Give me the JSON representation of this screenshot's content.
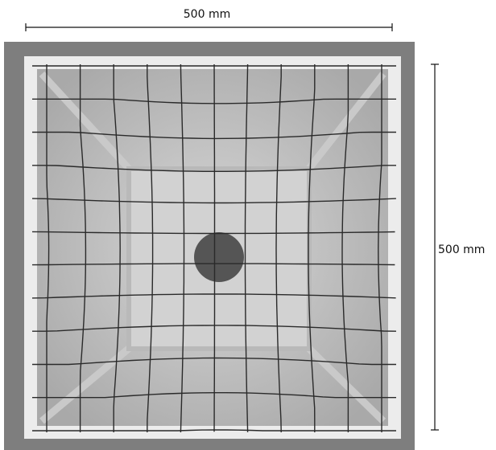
{
  "dimensions": {
    "width_label": "500 mm",
    "height_label": "500 mm"
  }
}
